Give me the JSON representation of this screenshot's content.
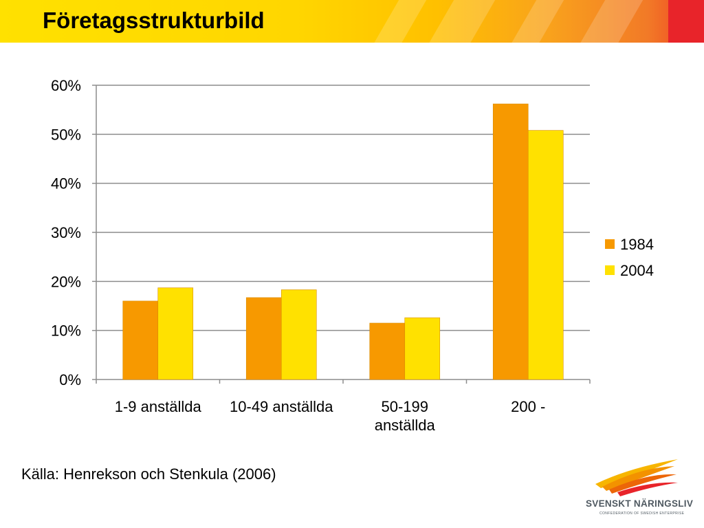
{
  "header": {
    "title": "Företagsstrukturbild"
  },
  "source": "Källa: Henrekson och Stenkula (2006)",
  "logo": {
    "name": "SVENSKT NÄRINGSLIV",
    "subtitle": "CONFEDERATION OF SWEDISH ENTERPRISE"
  },
  "colors": {
    "series_1984": "#f79900",
    "series_2004": "#ffe100",
    "grid": "#8c8c8c",
    "logo_text": "#4f5961"
  },
  "chart_data": {
    "type": "bar",
    "categories": [
      [
        "1-9 anställda"
      ],
      [
        "10-49 anställda"
      ],
      [
        "50-199",
        "anställda"
      ],
      [
        "200 -"
      ]
    ],
    "series": [
      {
        "name": "1984",
        "values": [
          16,
          16.7,
          11.5,
          56.2
        ]
      },
      {
        "name": "2004",
        "values": [
          18.7,
          18.3,
          12.6,
          50.8
        ]
      }
    ],
    "y_ticks": [
      "0%",
      "10%",
      "20%",
      "30%",
      "40%",
      "50%",
      "60%"
    ],
    "ylim": [
      0,
      60
    ],
    "y_unit": "%",
    "grid": true,
    "legend_position": "right"
  }
}
